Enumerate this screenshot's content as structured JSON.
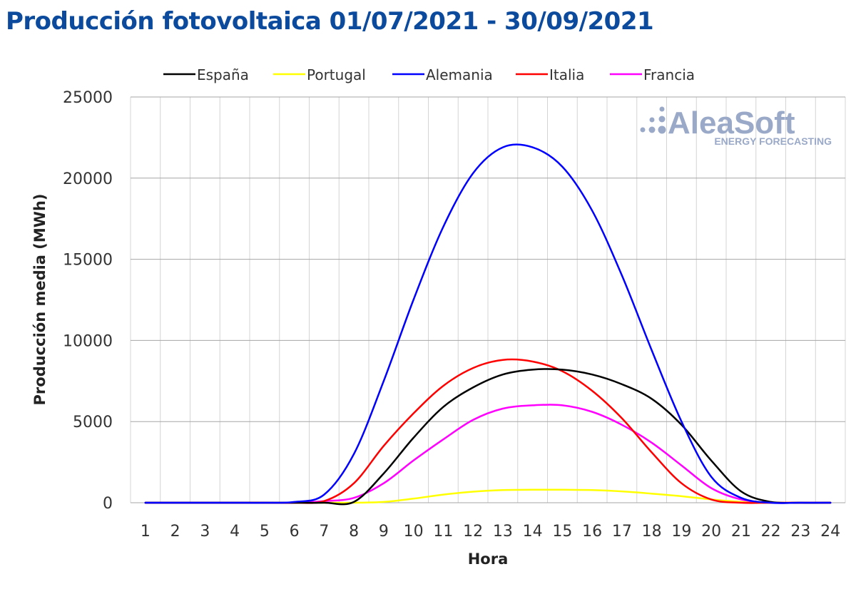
{
  "chart_data": {
    "type": "line",
    "title": "Producción fotovoltaica 01/07/2021 - 30/09/2021",
    "xlabel": "Hora",
    "ylabel": "Producción media (MWh)",
    "ylim": [
      0,
      25000
    ],
    "yticks": [
      "0",
      "5000",
      "10000",
      "15000",
      "20000",
      "25000"
    ],
    "x": [
      1,
      2,
      3,
      4,
      5,
      6,
      7,
      8,
      9,
      10,
      11,
      12,
      13,
      14,
      15,
      16,
      17,
      18,
      19,
      20,
      21,
      22,
      23,
      24
    ],
    "grid": true,
    "legend_position": "top",
    "series": [
      {
        "name": "España",
        "color": "#000000",
        "values": [
          0,
          0,
          0,
          0,
          0,
          0,
          0,
          50,
          1800,
          4000,
          5900,
          7100,
          7900,
          8200,
          8200,
          7900,
          7300,
          6400,
          4800,
          2600,
          700,
          50,
          0,
          0
        ]
      },
      {
        "name": "Portugal",
        "color": "#ffff00",
        "values": [
          0,
          0,
          0,
          0,
          0,
          0,
          0,
          0,
          50,
          250,
          500,
          680,
          780,
          800,
          800,
          780,
          700,
          560,
          400,
          200,
          50,
          0,
          0,
          0
        ]
      },
      {
        "name": "Alemania",
        "color": "#0000ff",
        "values": [
          0,
          0,
          0,
          0,
          0,
          50,
          500,
          3000,
          7500,
          12500,
          17000,
          20300,
          21900,
          21900,
          20700,
          18000,
          14000,
          9400,
          5000,
          1600,
          300,
          0,
          0,
          0
        ]
      },
      {
        "name": "Italia",
        "color": "#ff0000",
        "values": [
          0,
          0,
          0,
          0,
          0,
          0,
          100,
          1200,
          3500,
          5500,
          7200,
          8300,
          8800,
          8700,
          8100,
          6900,
          5200,
          3100,
          1200,
          200,
          0,
          0,
          0,
          0
        ]
      },
      {
        "name": "Francia",
        "color": "#ff00ff",
        "values": [
          0,
          0,
          0,
          0,
          0,
          0,
          100,
          300,
          1200,
          2600,
          3900,
          5100,
          5800,
          6000,
          6000,
          5600,
          4800,
          3700,
          2300,
          900,
          200,
          0,
          0,
          0
        ]
      }
    ]
  },
  "logo": {
    "name": "AleaSoft",
    "tagline": "ENERGY FORECASTING",
    "color": "#9aa9c8"
  }
}
